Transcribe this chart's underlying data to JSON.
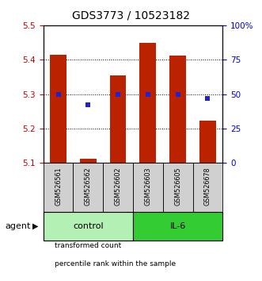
{
  "title": "GDS3773 / 10523182",
  "samples": [
    "GSM526561",
    "GSM526562",
    "GSM526602",
    "GSM526603",
    "GSM526605",
    "GSM526678"
  ],
  "bar_values": [
    5.415,
    5.112,
    5.355,
    5.448,
    5.413,
    5.222
  ],
  "percentile_values": [
    49.5,
    42.0,
    49.5,
    50.0,
    50.0,
    47.0
  ],
  "ylim_left": [
    5.1,
    5.5
  ],
  "ylim_right": [
    0,
    100
  ],
  "yticks_left": [
    5.1,
    5.2,
    5.3,
    5.4,
    5.5
  ],
  "yticks_right": [
    0,
    25,
    50,
    75,
    100
  ],
  "ytick_labels_right": [
    "0",
    "25",
    "50",
    "75",
    "100%"
  ],
  "bar_color": "#bb2200",
  "dot_color": "#2222cc",
  "bar_width": 0.55,
  "groups": [
    {
      "label": "control",
      "indices": [
        0,
        1,
        2
      ],
      "color": "#b3f0b3"
    },
    {
      "label": "IL-6",
      "indices": [
        3,
        4,
        5
      ],
      "color": "#33cc33"
    }
  ],
  "legend_items": [
    {
      "label": "transformed count",
      "color": "#bb2200"
    },
    {
      "label": "percentile rank within the sample",
      "color": "#2222cc"
    }
  ],
  "agent_label": "agent",
  "title_fontsize": 10,
  "tick_fontsize": 7.5,
  "axis_left_color": "#cc0000",
  "axis_right_color": "#0000cc",
  "sample_label_fontsize": 5.8,
  "group_label_fontsize": 8
}
